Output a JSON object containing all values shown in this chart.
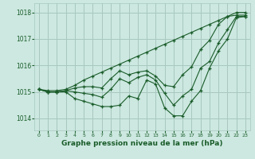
{
  "title": "",
  "xlabel": "Graphe pression niveau de la mer (hPa)",
  "bg_color": "#cce8e0",
  "grid_color": "#a8c8c0",
  "line_color": "#1a5c2a",
  "ylim": [
    1013.55,
    1018.35
  ],
  "xlim": [
    -0.5,
    23.5
  ],
  "yticks": [
    1014,
    1015,
    1016,
    1017,
    1018
  ],
  "xticks": [
    0,
    1,
    2,
    3,
    4,
    5,
    6,
    7,
    8,
    9,
    10,
    11,
    12,
    13,
    14,
    15,
    16,
    17,
    18,
    19,
    20,
    21,
    22,
    23
  ],
  "series": [
    [
      1015.1,
      1015.0,
      1015.0,
      1015.0,
      1014.75,
      1014.65,
      1014.55,
      1014.45,
      1014.45,
      1014.5,
      1014.85,
      1014.75,
      1015.45,
      1015.3,
      1014.4,
      1014.1,
      1014.1,
      1014.65,
      1015.05,
      1015.9,
      1016.55,
      1017.0,
      1017.8,
      1017.85
    ],
    [
      1015.1,
      1015.0,
      1015.0,
      1015.05,
      1015.0,
      1014.95,
      1014.9,
      1014.8,
      1015.1,
      1015.5,
      1015.35,
      1015.55,
      1015.65,
      1015.45,
      1014.95,
      1014.5,
      1014.85,
      1015.1,
      1015.9,
      1016.15,
      1016.85,
      1017.35,
      1017.85,
      1017.85
    ],
    [
      1015.1,
      1015.0,
      1015.0,
      1015.05,
      1015.15,
      1015.2,
      1015.2,
      1015.15,
      1015.5,
      1015.8,
      1015.65,
      1015.75,
      1015.8,
      1015.6,
      1015.25,
      1015.2,
      1015.65,
      1015.95,
      1016.6,
      1016.95,
      1017.55,
      1017.85,
      1017.9,
      1017.9
    ],
    [
      1015.1,
      1015.05,
      1015.05,
      1015.1,
      1015.25,
      1015.45,
      1015.6,
      1015.75,
      1015.9,
      1016.05,
      1016.2,
      1016.35,
      1016.5,
      1016.65,
      1016.8,
      1016.95,
      1017.1,
      1017.25,
      1017.4,
      1017.55,
      1017.7,
      1017.85,
      1018.0,
      1018.0
    ]
  ]
}
